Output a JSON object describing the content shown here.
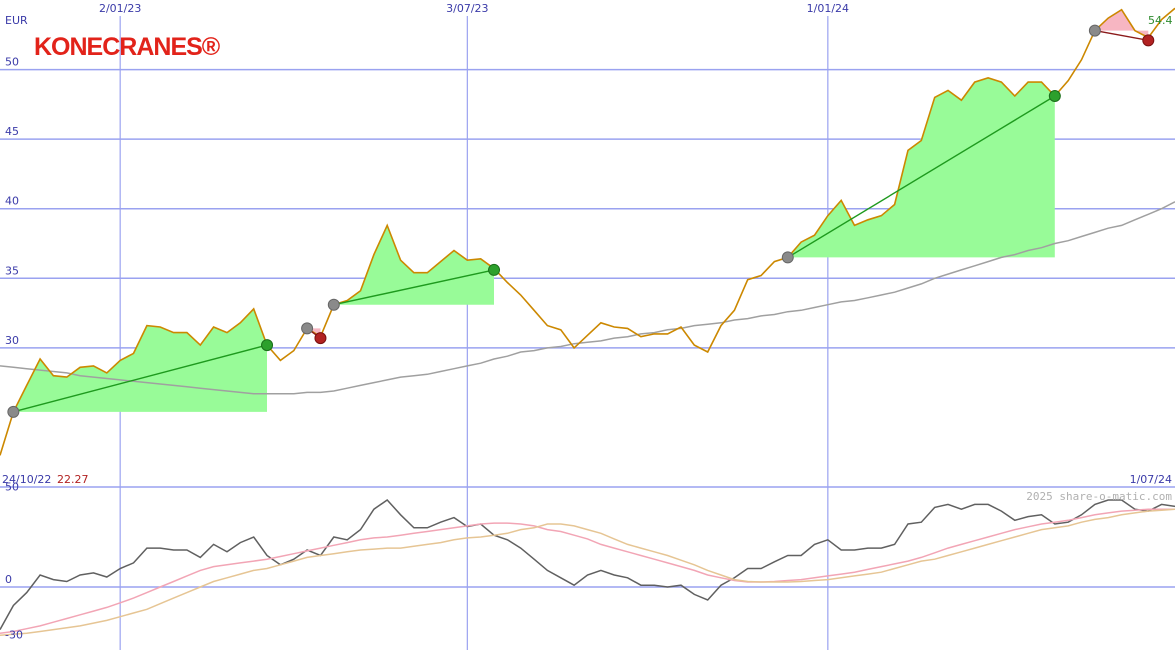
{
  "chart_data": [
    {
      "type": "line",
      "logo": "KONECRANES®",
      "unit": "EUR",
      "watermark": "2025 share-o-matic.com",
      "categories": [
        "24/10/22",
        null,
        null,
        null,
        null,
        null,
        null,
        null,
        null,
        "2/01/23",
        null,
        null,
        null,
        null,
        null,
        null,
        null,
        null,
        null,
        null,
        null,
        null,
        null,
        null,
        null,
        null,
        null,
        null,
        null,
        null,
        null,
        null,
        null,
        null,
        null,
        "3/07/23",
        null,
        null,
        null,
        null,
        null,
        null,
        null,
        null,
        null,
        null,
        null,
        null,
        null,
        null,
        null,
        null,
        null,
        null,
        null,
        null,
        null,
        null,
        null,
        null,
        null,
        null,
        "1/01/24",
        null,
        null,
        null,
        null,
        null,
        null,
        null,
        null,
        null,
        null,
        null,
        null,
        null,
        null,
        null,
        null,
        null,
        null,
        null,
        null,
        null,
        null,
        null,
        null,
        null,
        "1/07/24"
      ],
      "series": [
        {
          "color": "#cc8800",
          "values": [
            22.27,
            25.4,
            27.3,
            29.2,
            28.0,
            27.9,
            28.6,
            28.7,
            28.2,
            29.1,
            29.6,
            31.6,
            31.5,
            31.1,
            31.1,
            30.2,
            31.5,
            31.1,
            31.8,
            32.8,
            30.2,
            29.1,
            29.8,
            31.4,
            30.8,
            33.1,
            33.4,
            34.1,
            36.7,
            38.8,
            36.3,
            35.4,
            35.4,
            36.2,
            37.0,
            36.3,
            36.4,
            35.7,
            34.7,
            33.8,
            32.7,
            31.6,
            31.3,
            30.0,
            30.9,
            31.8,
            31.5,
            31.4,
            30.8,
            31.0,
            31.0,
            31.5,
            30.2,
            29.7,
            31.6,
            32.7,
            34.9,
            35.2,
            36.2,
            36.5,
            37.6,
            38.1,
            39.5,
            40.6,
            38.8,
            39.2,
            39.5,
            40.3,
            44.2,
            44.9,
            48.0,
            48.5,
            47.8,
            49.1,
            49.4,
            49.1,
            48.1,
            49.1,
            49.1,
            48.1,
            49.2,
            50.7,
            52.8,
            53.7,
            54.3,
            52.8,
            52.3,
            53.6,
            54.4
          ]
        },
        {
          "color": "#a0a0a0",
          "values": [
            28.7,
            28.6,
            28.5,
            28.4,
            28.3,
            28.2,
            28.0,
            27.9,
            27.8,
            27.7,
            27.6,
            27.5,
            27.4,
            27.3,
            27.2,
            27.1,
            27.0,
            26.9,
            26.8,
            26.7,
            26.7,
            26.7,
            26.7,
            26.8,
            26.8,
            26.9,
            27.1,
            27.3,
            27.5,
            27.7,
            27.9,
            28.0,
            28.1,
            28.3,
            28.5,
            28.7,
            28.9,
            29.2,
            29.4,
            29.7,
            29.8,
            30.0,
            30.1,
            30.3,
            30.4,
            30.5,
            30.7,
            30.8,
            31.0,
            31.1,
            31.3,
            31.4,
            31.6,
            31.7,
            31.8,
            32.0,
            32.1,
            32.3,
            32.4,
            32.6,
            32.7,
            32.9,
            33.1,
            33.3,
            33.4,
            33.6,
            33.8,
            34.0,
            34.3,
            34.6,
            35.0,
            35.3,
            35.6,
            35.9,
            36.2,
            36.5,
            36.7,
            37.0,
            37.2,
            37.5,
            37.7,
            38.0,
            38.3,
            38.6,
            38.8,
            39.2,
            39.6,
            40.0,
            40.5
          ]
        }
      ],
      "signals": {
        "entry": [
          null,
          25.4,
          null,
          null,
          null,
          null,
          null,
          null,
          null,
          null,
          null,
          null,
          null,
          null,
          null,
          null,
          null,
          null,
          null,
          null,
          null,
          null,
          null,
          31.4,
          null,
          33.1,
          null,
          null,
          null,
          null,
          null,
          null,
          null,
          null,
          null,
          null,
          null,
          null,
          null,
          null,
          null,
          null,
          null,
          null,
          null,
          null,
          null,
          null,
          null,
          null,
          null,
          null,
          null,
          null,
          null,
          null,
          null,
          null,
          null,
          36.5,
          null,
          null,
          null,
          null,
          null,
          null,
          null,
          null,
          null,
          null,
          null,
          null,
          null,
          null,
          null,
          null,
          null,
          null,
          null,
          null,
          null,
          null,
          52.8,
          null,
          null,
          null,
          null,
          null,
          null
        ],
        "exit": [
          null,
          null,
          null,
          null,
          null,
          null,
          null,
          null,
          null,
          null,
          null,
          null,
          null,
          null,
          null,
          null,
          null,
          null,
          null,
          null,
          30.2,
          null,
          null,
          null,
          30.7,
          null,
          null,
          null,
          null,
          null,
          null,
          null,
          null,
          null,
          null,
          null,
          null,
          35.6,
          null,
          null,
          null,
          null,
          null,
          null,
          null,
          null,
          null,
          null,
          null,
          null,
          null,
          null,
          null,
          null,
          null,
          null,
          null,
          null,
          null,
          null,
          null,
          null,
          null,
          null,
          null,
          null,
          null,
          null,
          null,
          null,
          null,
          null,
          null,
          null,
          null,
          null,
          null,
          null,
          null,
          48.1,
          null,
          null,
          null,
          null,
          null,
          null,
          52.1,
          null,
          null
        ]
      },
      "ylim": [
        20,
        55
      ],
      "yticks": [
        30,
        35,
        40,
        45,
        50
      ],
      "grid": true
    },
    {
      "type": "line",
      "series": [
        {
          "color": "#e6c594",
          "values": [
            -26,
            -25.5,
            -25,
            -24,
            -23,
            -22,
            -21,
            -19.5,
            -18,
            -16,
            -14,
            -12,
            -9,
            -6,
            -3,
            0,
            3,
            5,
            7,
            9,
            10,
            12,
            14,
            16,
            17,
            18,
            19,
            20,
            20.5,
            21,
            21,
            22,
            23,
            24,
            25.5,
            26.5,
            27,
            28,
            29,
            31,
            32,
            34,
            34,
            33,
            31,
            29,
            26,
            23,
            21,
            19,
            17,
            14.5,
            12,
            9,
            6.5,
            4,
            3,
            2.7,
            2.7,
            2.7,
            3,
            3.5,
            4,
            5,
            6,
            7,
            8,
            10,
            12,
            14,
            15,
            17,
            19,
            21,
            23,
            25,
            27,
            29,
            31,
            32,
            33,
            35,
            36.5,
            37.5,
            39,
            40,
            41,
            41.5,
            42
          ]
        },
        {
          "color": "#f2a5b5",
          "values": [
            -25,
            -24,
            -22.5,
            -21,
            -19,
            -17,
            -15,
            -13,
            -11,
            -8.5,
            -6,
            -3,
            0,
            3,
            6,
            9,
            11,
            12,
            13,
            14,
            15,
            16.5,
            18,
            19.5,
            21,
            22.5,
            24,
            25.5,
            26.5,
            27,
            28,
            29,
            30,
            31,
            32,
            33,
            34,
            34.5,
            34.5,
            34,
            33,
            31,
            30,
            28,
            26,
            23,
            21,
            19,
            17,
            15,
            13,
            11,
            9,
            6.5,
            5,
            3.5,
            2.7,
            2.7,
            3,
            3.5,
            4,
            5,
            6,
            7,
            8,
            9.5,
            11,
            12.5,
            14,
            16,
            18.5,
            21,
            23,
            25,
            27,
            29,
            31,
            32.5,
            34,
            35,
            36,
            37.5,
            39,
            40,
            41,
            41.5,
            42,
            42,
            42
          ]
        },
        {
          "color": "#606060",
          "values": [
            -23,
            -10,
            -3,
            6.5,
            4,
            3,
            6.5,
            7.6,
            5.4,
            10,
            13,
            21,
            21,
            20,
            20,
            16,
            23,
            19,
            24,
            27,
            17,
            12,
            15,
            20,
            17,
            27,
            25.5,
            31,
            42,
            47,
            39,
            32,
            32,
            35,
            37.5,
            32.6,
            34,
            28,
            25.5,
            21,
            15,
            9,
            5,
            1,
            6.5,
            9,
            6.5,
            5,
            1,
            1,
            0,
            1,
            -4,
            -7,
            1,
            5,
            10,
            10,
            13.6,
            17,
            17,
            23,
            25.5,
            20,
            20,
            21,
            21,
            23,
            34,
            35,
            43,
            44.6,
            42,
            44.6,
            44.6,
            41,
            36,
            38,
            39,
            34,
            35,
            39,
            44.6,
            47,
            47,
            42,
            41,
            44.6,
            43.5
          ]
        }
      ],
      "ylim": [
        -34,
        54
      ],
      "yticks": [
        50,
        0,
        -30
      ]
    }
  ]
}
